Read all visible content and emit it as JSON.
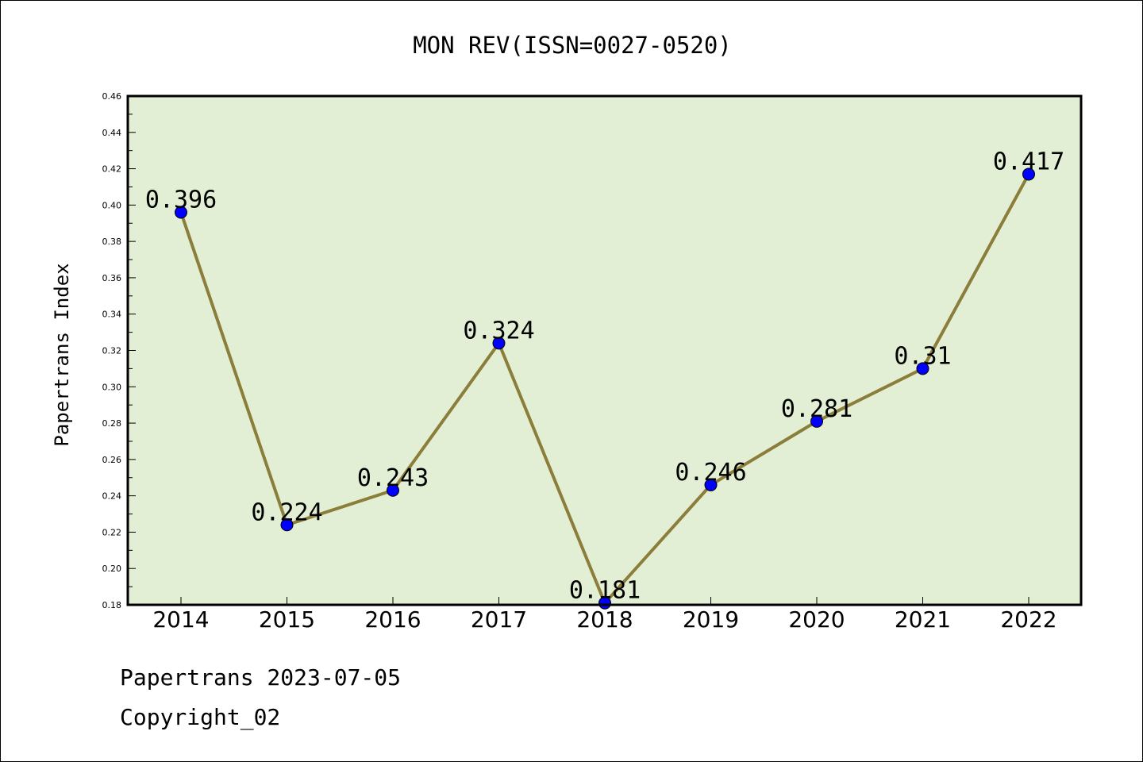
{
  "chart_data": {
    "type": "line",
    "title": "MON REV(ISSN=0027-0520)",
    "xlabel": "",
    "ylabel": "Papertrans Index",
    "categories": [
      "2014",
      "2015",
      "2016",
      "2017",
      "2018",
      "2019",
      "2020",
      "2021",
      "2022"
    ],
    "values": [
      0.396,
      0.224,
      0.243,
      0.324,
      0.181,
      0.246,
      0.281,
      0.31,
      0.417
    ],
    "data_labels": [
      "0.396",
      "0.224",
      "0.243",
      "0.324",
      "0.181",
      "0.246",
      "0.281",
      "0.31",
      "0.417"
    ],
    "ylim": [
      0.18,
      0.46
    ],
    "yticks": [
      "0.18",
      "0.20",
      "0.22",
      "0.24",
      "0.26",
      "0.28",
      "0.30",
      "0.32",
      "0.34",
      "0.36",
      "0.38",
      "0.40",
      "0.42",
      "0.44",
      "0.46"
    ],
    "grid": false,
    "colors": {
      "plot_background": "#e2efd4",
      "line": "#8b7d3a",
      "marker": "#0000ff"
    }
  },
  "footer": {
    "date": "Papertrans 2023-07-05",
    "copyright": "Copyright_02"
  }
}
